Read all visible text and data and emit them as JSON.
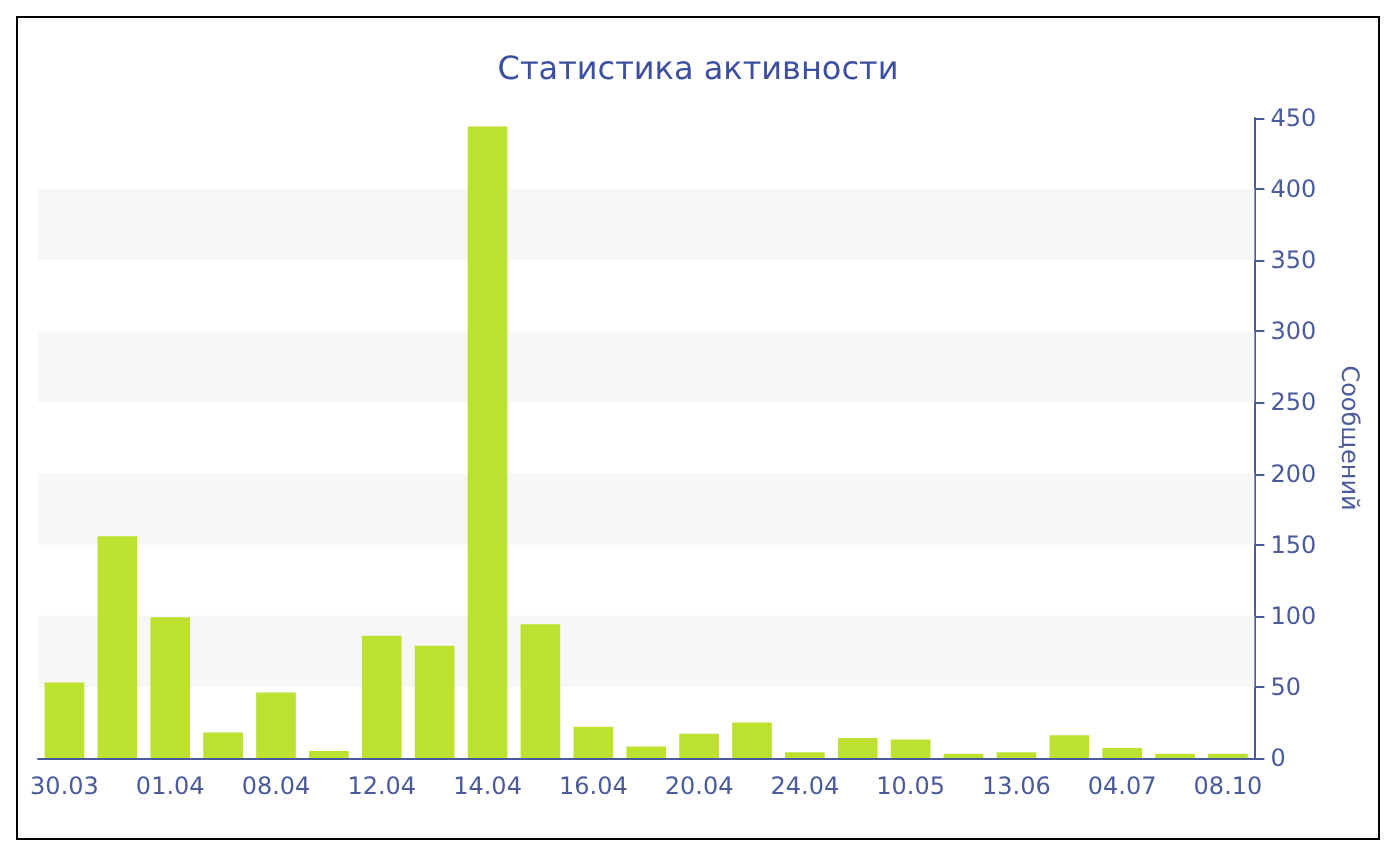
{
  "chart_data": {
    "type": "bar",
    "title": "Статистика активности",
    "ylabel": "Сообщений",
    "categories": [
      "30.03",
      null,
      "01.04",
      null,
      "08.04",
      null,
      "12.04",
      null,
      "14.04",
      null,
      "16.04",
      null,
      "20.04",
      null,
      "24.04",
      null,
      "10.05",
      null,
      "13.06",
      null,
      "04.07",
      null,
      "08.10"
    ],
    "values": [
      53,
      156,
      99,
      18,
      46,
      5,
      86,
      79,
      444,
      94,
      22,
      8,
      17,
      25,
      4,
      14,
      13,
      3,
      4,
      16,
      7,
      3,
      3
    ],
    "color": "#bde130",
    "ylim": [
      0,
      450
    ],
    "yticks": [
      0,
      50,
      100,
      150,
      200,
      250,
      300,
      350,
      400,
      450
    ],
    "bands": [
      {
        "axis": "y",
        "from": 50,
        "to": 100,
        "color": "#f7f7f7"
      },
      {
        "axis": "y",
        "from": 150,
        "to": 200,
        "color": "#f7f7f7"
      },
      {
        "axis": "y",
        "from": 250,
        "to": 300,
        "color": "#f7f7f7"
      },
      {
        "axis": "y",
        "from": 350,
        "to": 400,
        "color": "#f7f7f7"
      }
    ]
  }
}
